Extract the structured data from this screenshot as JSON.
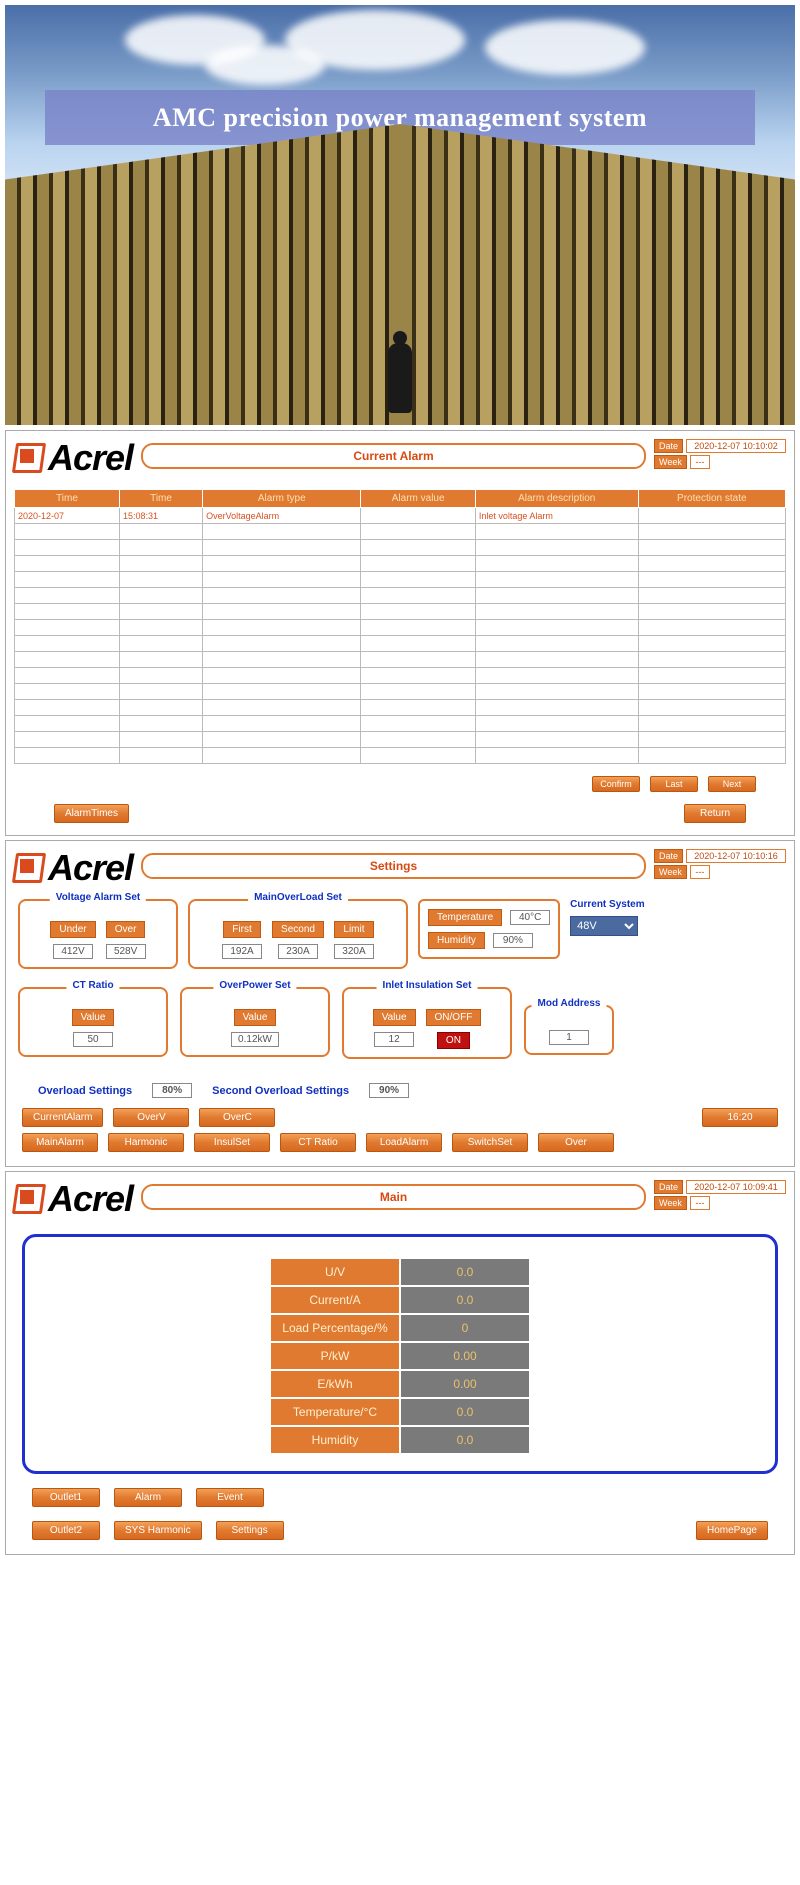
{
  "hero_title": "AMC precision power management system",
  "brand": "Acrel",
  "panels": {
    "alarm": {
      "title": "Current Alarm",
      "date": "2020-12-07 10:10:02",
      "week": "---",
      "columns": [
        "Time",
        "Time",
        "Alarm type",
        "Alarm value",
        "Alarm description",
        "Protection state"
      ],
      "rows": [
        {
          "date": "2020-12-07",
          "time": "15:08:31",
          "type": "OverVoltageAlarm",
          "value": "",
          "desc": "Inlet voltage Alarm",
          "state": ""
        }
      ],
      "blank_rows": 15,
      "btns_right": [
        "Confirm",
        "Last",
        "Next"
      ],
      "btn_bl": "AlarmTimes",
      "btn_br": "Return"
    },
    "settings": {
      "title": "Settings",
      "date": "2020-12-07 10:10:16",
      "week": "---",
      "voltage_alarm": {
        "legend": "Voltage Alarm Set",
        "under_label": "Under",
        "over_label": "Over",
        "under": "412V",
        "over": "528V"
      },
      "main_overload": {
        "legend": "MainOverLoad Set",
        "first_label": "First",
        "second_label": "Second",
        "limit_label": "Limit",
        "first": "192A",
        "second": "230A",
        "limit": "320A"
      },
      "temp_hum": {
        "temp_label": "Temperature",
        "hum_label": "Humidity",
        "temp": "40°C",
        "hum": "90%"
      },
      "current_system": {
        "label": "Current System",
        "value": "48V"
      },
      "ct_ratio": {
        "legend": "CT Ratio",
        "value_label": "Value",
        "value": "50"
      },
      "overpower": {
        "legend": "OverPower Set",
        "value_label": "Value",
        "value": "0.12kW"
      },
      "inlet_insulation": {
        "legend": "Inlet Insulation Set",
        "value_label": "Value",
        "onoff_label": "ON/OFF",
        "value": "12",
        "onoff": "ON"
      },
      "mod_addr": {
        "legend": "Mod Address",
        "value": "1"
      },
      "overload_row": {
        "label1": "Overload Settings",
        "val1": "80%",
        "label2": "Second Overload Settings",
        "val2": "90%"
      },
      "btns_r1": [
        "CurrentAlarm",
        "OverV",
        "OverC",
        "",
        "",
        "",
        "16:20"
      ],
      "btns_r2": [
        "MainAlarm",
        "Harmonic",
        "InsulSet",
        "CT Ratio",
        "LoadAlarm",
        "SwitchSet",
        "Over"
      ]
    },
    "main": {
      "title": "Main",
      "date": "2020-12-07 10:09:41",
      "week": "---",
      "rows": [
        {
          "label": "U/V",
          "value": "0.0"
        },
        {
          "label": "Current/A",
          "value": "0.0"
        },
        {
          "label": "Load Percentage/%",
          "value": "0"
        },
        {
          "label": "P/kW",
          "value": "0.00"
        },
        {
          "label": "E/kWh",
          "value": "0.00"
        },
        {
          "label": "Temperature/°C",
          "value": "0.0"
        },
        {
          "label": "Humidity",
          "value": "0.0"
        }
      ],
      "btns_r1": [
        "Outlet1",
        "Alarm",
        "Event",
        "",
        ""
      ],
      "btns_r2": [
        "Outlet2",
        "SYS Harmonic",
        "Settings",
        "",
        "HomePage"
      ]
    }
  },
  "labels": {
    "date": "Date",
    "week": "Week"
  },
  "colors": {
    "orange": "#e07a30",
    "blue": "#2030d0",
    "grey": "#7a7a7a"
  }
}
